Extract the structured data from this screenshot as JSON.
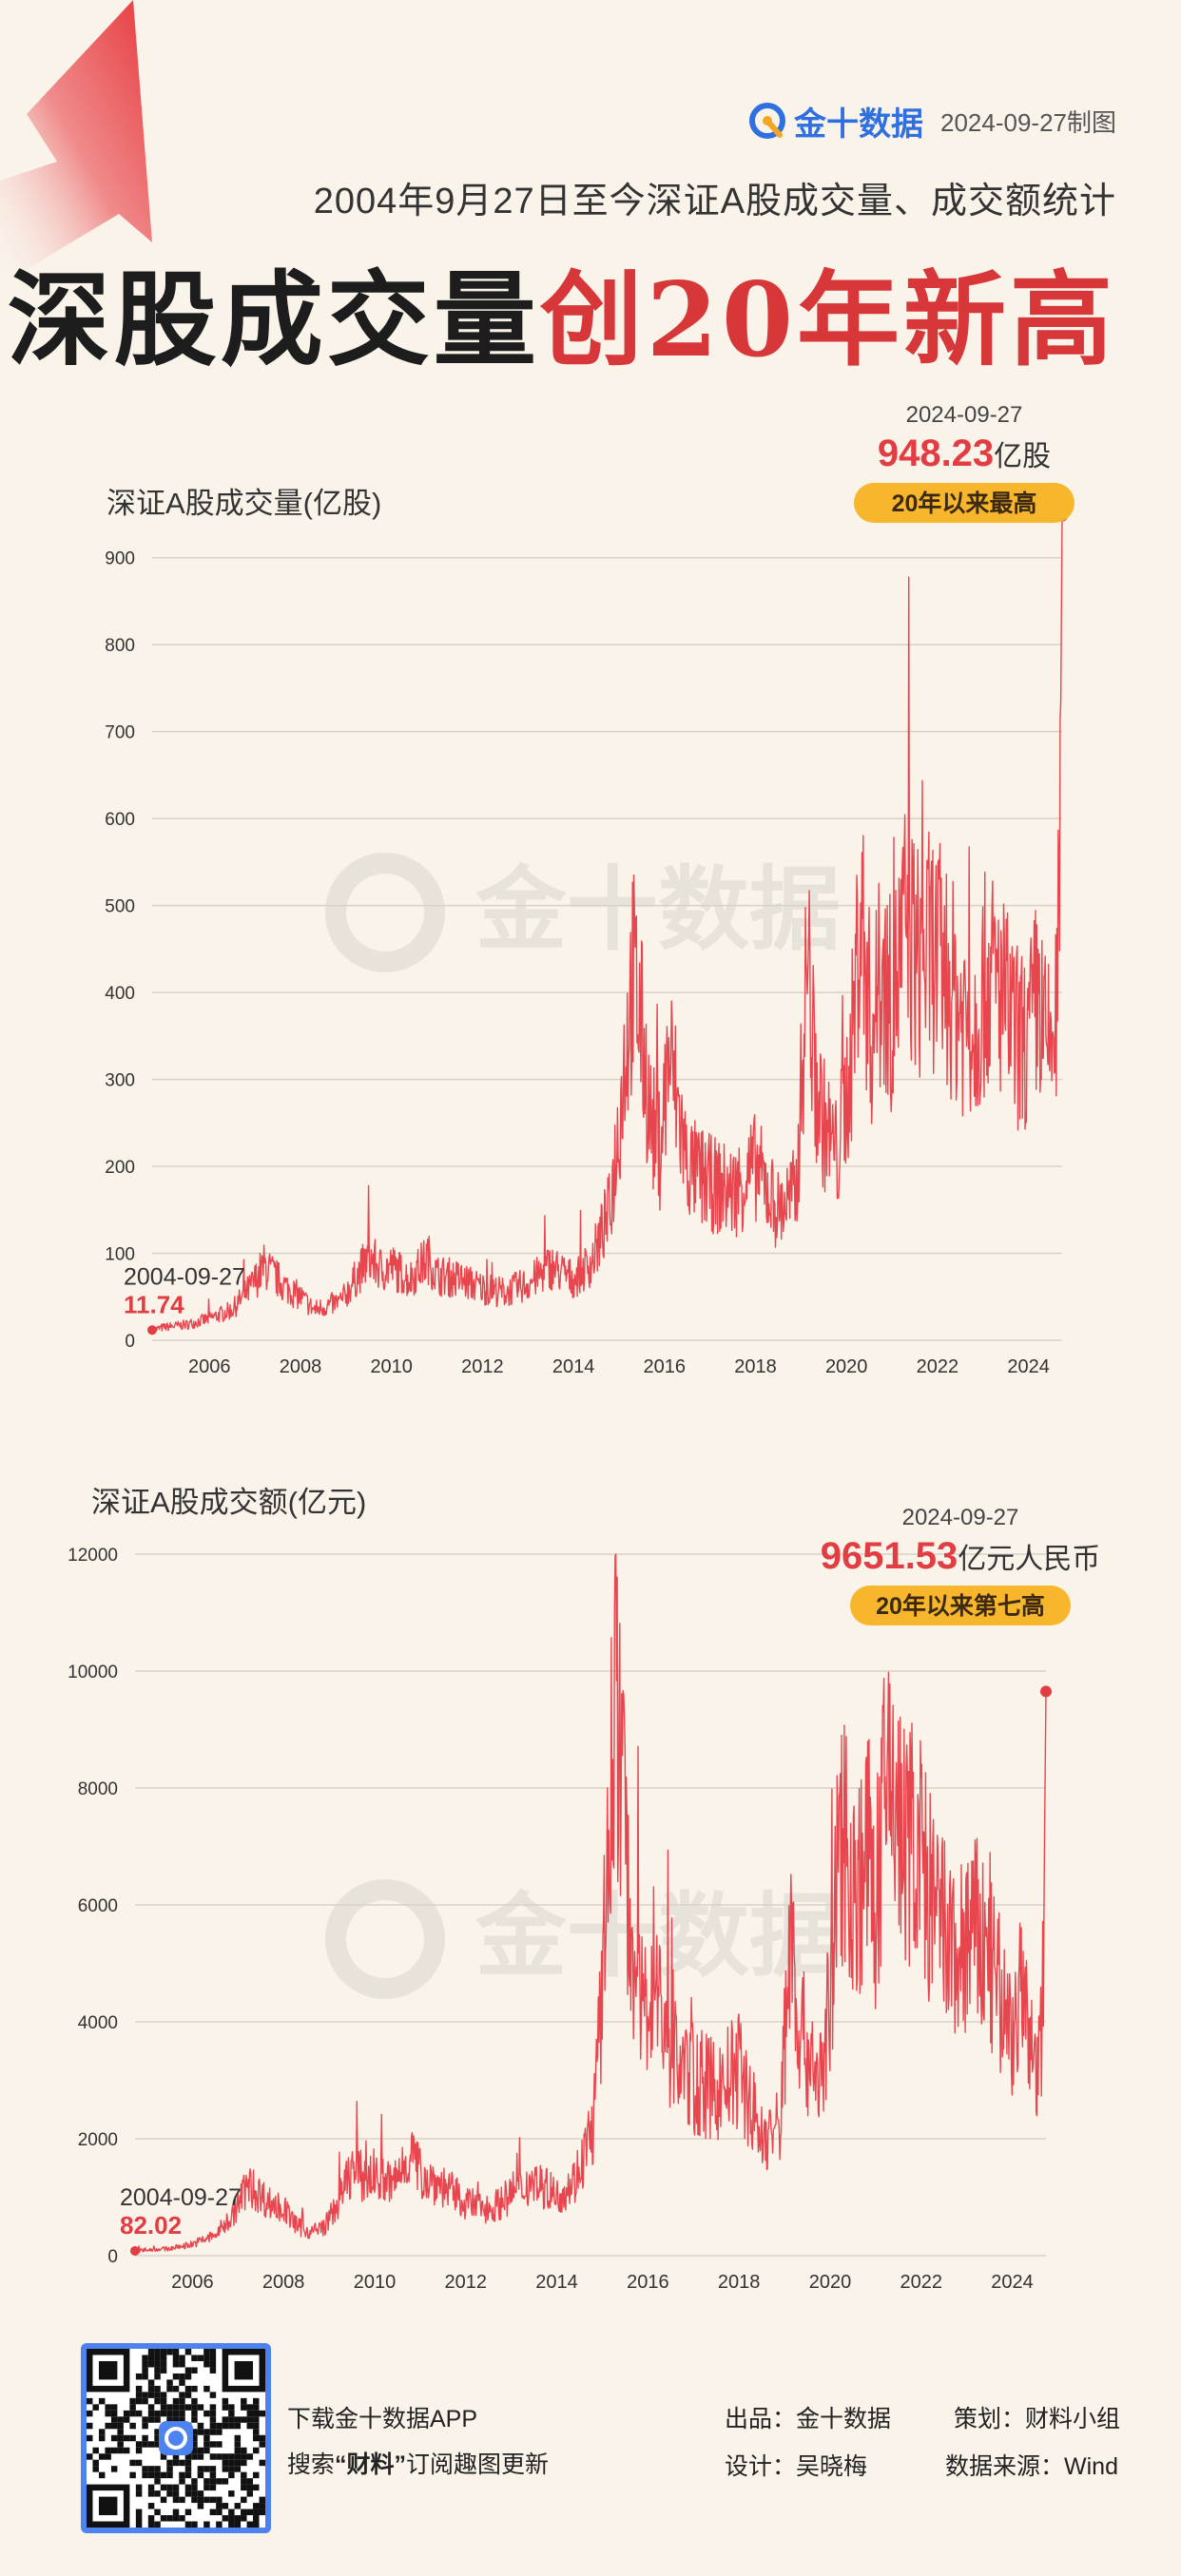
{
  "header": {
    "brand": "金十数据",
    "made_date": "2024-09-27制图",
    "subtitle": "2004年9月27日至今深证A股成交量、成交额统计",
    "headline_black": "深股成交量",
    "headline_red": "创20年新高"
  },
  "chart_data": [
    {
      "type": "line",
      "title": "深证A股成交量(亿股)",
      "ylim": [
        0,
        950
      ],
      "yticks": [
        0,
        100,
        200,
        300,
        400,
        500,
        600,
        700,
        800,
        900
      ],
      "xlim": [
        2004.74,
        2024.74
      ],
      "xticks": [
        "2006",
        "2008",
        "2010",
        "2012",
        "2014",
        "2016",
        "2018",
        "2020",
        "2022",
        "2024"
      ],
      "grid": true,
      "color": "#e8464f",
      "start": {
        "date": "2004-09-27",
        "value": 11.74,
        "label": "11.74"
      },
      "end": {
        "date": "2024-09-27",
        "value": 948.23,
        "value_label": "948.23",
        "unit": "亿股",
        "badge": "20年以来最高"
      },
      "x": [
        2004.74,
        2005.0,
        2005.5,
        2006.0,
        2006.5,
        2006.9,
        2007.2,
        2007.4,
        2007.7,
        2008.0,
        2008.3,
        2008.6,
        2008.9,
        2009.2,
        2009.5,
        2009.8,
        2010.0,
        2010.4,
        2010.8,
        2011.0,
        2011.5,
        2012.0,
        2012.5,
        2013.0,
        2013.5,
        2014.0,
        2014.4,
        2014.8,
        2015.0,
        2015.3,
        2015.45,
        2015.7,
        2015.9,
        2016.1,
        2016.5,
        2017.0,
        2017.5,
        2018.0,
        2018.5,
        2018.9,
        2019.15,
        2019.3,
        2019.5,
        2019.8,
        2020.1,
        2020.3,
        2020.55,
        2020.8,
        2021.0,
        2021.3,
        2021.6,
        2021.9,
        2022.2,
        2022.5,
        2022.8,
        2023.1,
        2023.4,
        2023.7,
        2024.0,
        2024.2,
        2024.4,
        2024.6,
        2024.68,
        2024.74
      ],
      "y": [
        11.74,
        15,
        18,
        25,
        35,
        60,
        85,
        75,
        60,
        50,
        35,
        40,
        45,
        70,
        95,
        80,
        85,
        70,
        95,
        75,
        70,
        60,
        55,
        65,
        85,
        70,
        90,
        150,
        250,
        420,
        380,
        250,
        220,
        330,
        200,
        180,
        170,
        200,
        150,
        170,
        450,
        300,
        250,
        210,
        320,
        500,
        350,
        420,
        380,
        480,
        430,
        450,
        420,
        380,
        360,
        420,
        400,
        350,
        340,
        400,
        330,
        360,
        500,
        948.23
      ]
    },
    {
      "type": "line",
      "title": "深证A股成交额(亿元)",
      "ylim": [
        0,
        12000
      ],
      "yticks": [
        0,
        2000,
        4000,
        6000,
        8000,
        10000,
        12000
      ],
      "xlim": [
        2004.74,
        2024.74
      ],
      "xticks": [
        "2006",
        "2008",
        "2010",
        "2012",
        "2014",
        "2016",
        "2018",
        "2020",
        "2022",
        "2024"
      ],
      "grid": true,
      "color": "#e8464f",
      "start": {
        "date": "2004-09-27",
        "value": 82.02,
        "label": "82.02"
      },
      "end": {
        "date": "2024-09-27",
        "value": 9651.53,
        "value_label": "9651.53",
        "unit": "亿元人民币",
        "badge": "20年以来第七高"
      },
      "x": [
        2004.74,
        2005.0,
        2005.5,
        2006.0,
        2006.5,
        2006.9,
        2007.2,
        2007.4,
        2007.7,
        2008.0,
        2008.3,
        2008.6,
        2008.9,
        2009.2,
        2009.5,
        2009.8,
        2010.0,
        2010.4,
        2010.8,
        2011.0,
        2011.5,
        2012.0,
        2012.5,
        2013.0,
        2013.5,
        2014.0,
        2014.4,
        2014.8,
        2015.0,
        2015.3,
        2015.45,
        2015.7,
        2015.9,
        2016.1,
        2016.5,
        2017.0,
        2017.5,
        2018.0,
        2018.5,
        2018.9,
        2019.15,
        2019.3,
        2019.5,
        2019.8,
        2020.1,
        2020.3,
        2020.55,
        2020.8,
        2021.0,
        2021.3,
        2021.6,
        2021.9,
        2022.2,
        2022.5,
        2022.8,
        2023.1,
        2023.4,
        2023.7,
        2024.0,
        2024.2,
        2024.4,
        2024.6,
        2024.68,
        2024.74
      ],
      "y": [
        82.02,
        100,
        120,
        200,
        350,
        700,
        1200,
        1100,
        900,
        800,
        500,
        400,
        500,
        900,
        1500,
        1300,
        1400,
        1200,
        1800,
        1400,
        1200,
        900,
        800,
        1000,
        1300,
        1000,
        1300,
        2200,
        4500,
        10000,
        7500,
        5000,
        4000,
        5000,
        3500,
        3000,
        2800,
        3200,
        2000,
        2200,
        5800,
        4000,
        3500,
        3000,
        5000,
        7500,
        6000,
        7000,
        6000,
        8500,
        7000,
        7200,
        6000,
        5500,
        5000,
        5600,
        5200,
        4500,
        3800,
        4500,
        3500,
        3200,
        4800,
        9651.53
      ]
    }
  ],
  "watermark": "金十数据",
  "footer": {
    "download": "下载金十数据APP",
    "search_pre": "搜索",
    "search_keyword": "“财料”",
    "search_post": "订阅趣图更新",
    "publisher_label": "出品：",
    "publisher": "金十数据",
    "planner_label": "策划：",
    "planner": "财料小组",
    "designer_label": "设计：",
    "designer": "吴晓梅",
    "source_label": "数据来源：",
    "source": "Wind"
  }
}
